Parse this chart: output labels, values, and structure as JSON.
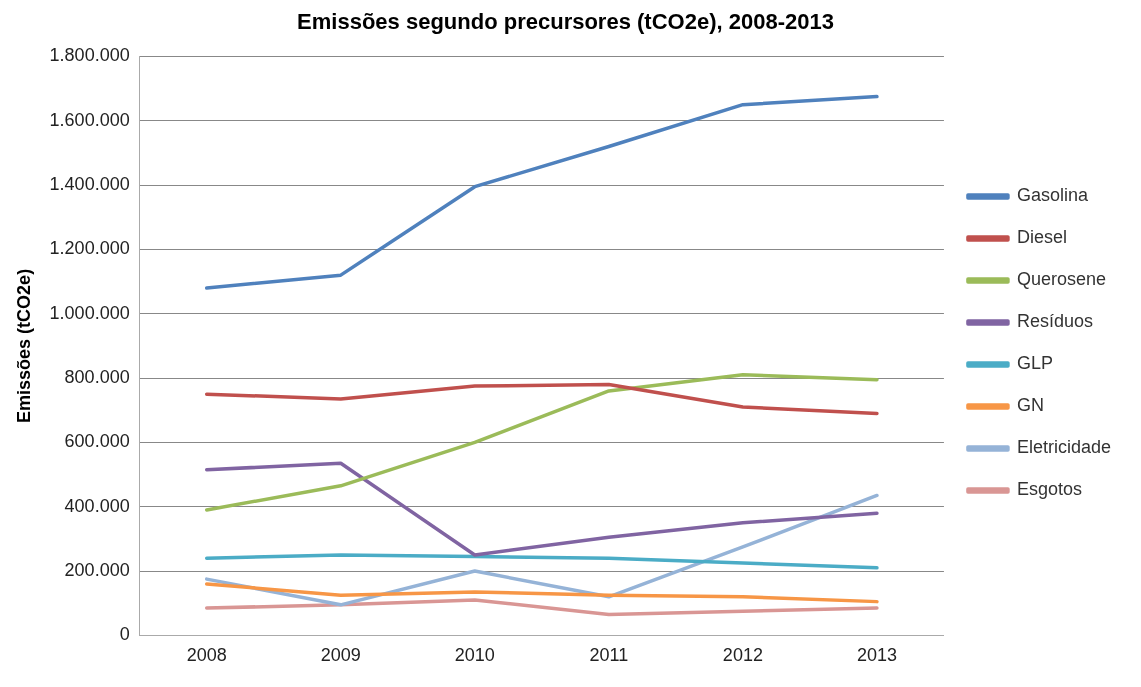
{
  "chart_data": {
    "type": "line",
    "title": "Emissões segundo precursores (tCO2e), 2008-2013",
    "ylabel": "Emissões (tCO2e)",
    "categories": [
      "2008",
      "2009",
      "2010",
      "2011",
      "2012",
      "2013"
    ],
    "series": [
      {
        "name": "Gasolina",
        "color": "#4f81bd",
        "values": [
          1080000,
          1120000,
          1395000,
          1520000,
          1650000,
          1675000
        ]
      },
      {
        "name": "Diesel",
        "color": "#c0504d",
        "values": [
          750000,
          735000,
          775000,
          780000,
          710000,
          690000
        ]
      },
      {
        "name": "Querosene",
        "color": "#9bbb59",
        "values": [
          390000,
          465000,
          600000,
          760000,
          810000,
          795000
        ]
      },
      {
        "name": "Resíduos",
        "color": "#8064a2",
        "values": [
          515000,
          535000,
          250000,
          305000,
          350000,
          380000
        ]
      },
      {
        "name": "GLP",
        "color": "#4bacc6",
        "values": [
          240000,
          250000,
          245000,
          240000,
          225000,
          210000
        ]
      },
      {
        "name": "GN",
        "color": "#f79646",
        "values": [
          160000,
          125000,
          135000,
          125000,
          120000,
          105000
        ]
      },
      {
        "name": "Eletricidade",
        "color": "#95b3d7",
        "values": [
          175000,
          95000,
          200000,
          120000,
          275000,
          435000
        ]
      },
      {
        "name": "Esgotos",
        "color": "#d99694",
        "values": [
          85000,
          95000,
          110000,
          65000,
          75000,
          85000
        ]
      }
    ],
    "ylim": [
      0,
      1800000
    ],
    "yticks": [
      {
        "value": 0,
        "label": "0"
      },
      {
        "value": 200000,
        "label": "200.000"
      },
      {
        "value": 400000,
        "label": "400.000"
      },
      {
        "value": 600000,
        "label": "600.000"
      },
      {
        "value": 800000,
        "label": "800.000"
      },
      {
        "value": 1000000,
        "label": "1.000.000"
      },
      {
        "value": 1200000,
        "label": "1.200.000"
      },
      {
        "value": 1400000,
        "label": "1.400.000"
      },
      {
        "value": 1600000,
        "label": "1.600.000"
      },
      {
        "value": 1800000,
        "label": "1.800.000"
      }
    ],
    "grid": "y",
    "legend": "right",
    "marker": "none"
  }
}
